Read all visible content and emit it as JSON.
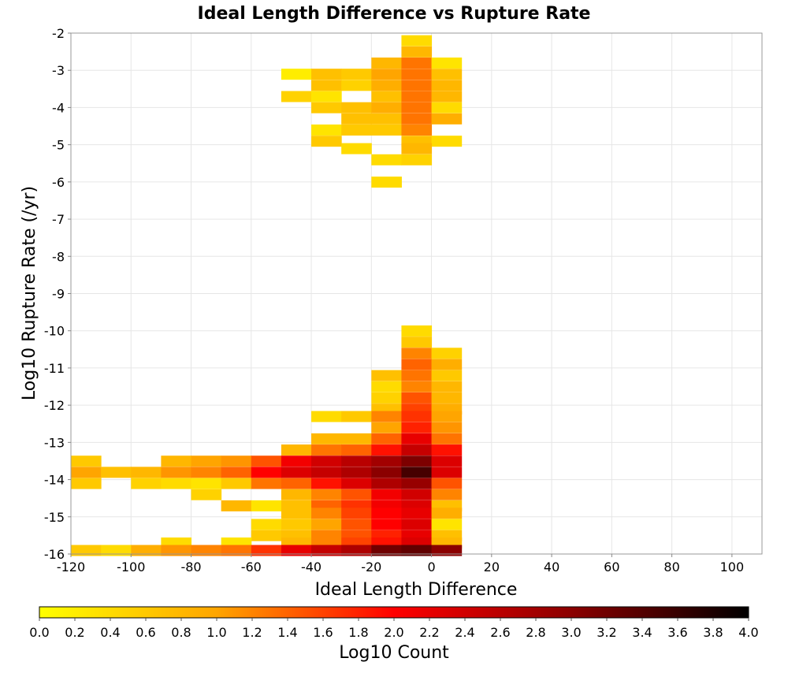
{
  "chart_data": {
    "type": "heatmap",
    "title": "Ideal Length Difference vs Rupture Rate",
    "xlabel": "Ideal Length Difference",
    "ylabel": "Log10 Rupture Rate (/yr)",
    "colorbar_label": "Log10 Count",
    "xlim": [
      -120,
      110
    ],
    "ylim": [
      -16,
      -2
    ],
    "x_ticks": [
      "-120",
      "-100",
      "-80",
      "-60",
      "-40",
      "-20",
      "0",
      "20",
      "40",
      "60",
      "80",
      "100"
    ],
    "y_ticks": [
      "-2",
      "-3",
      "-4",
      "-5",
      "-6",
      "-7",
      "-8",
      "-9",
      "-10",
      "-11",
      "-12",
      "-13",
      "-14",
      "-15",
      "-16"
    ],
    "colorbar_ticks": [
      "0.0",
      "0.2",
      "0.4",
      "0.6",
      "0.8",
      "1.0",
      "1.2",
      "1.4",
      "1.6",
      "1.8",
      "2.0",
      "2.2",
      "2.4",
      "2.6",
      "2.8",
      "3.0",
      "3.2",
      "3.4",
      "3.6",
      "3.8",
      "4.0"
    ],
    "color_range": [
      0,
      4
    ],
    "bin_width_x": 10,
    "bin_height_y": 0.2857,
    "colormap": [
      "#ffff00",
      "#ffa500",
      "#ff0000",
      "#8b0000",
      "#000000"
    ],
    "grid": true,
    "cells": [
      [
        -10,
        -2.2,
        0.4
      ],
      [
        -10,
        -2.5,
        0.8
      ],
      [
        -20,
        -2.8,
        0.8
      ],
      [
        -10,
        -2.8,
        1.3
      ],
      [
        0,
        -2.8,
        0.3
      ],
      [
        -50,
        -3.1,
        0.2
      ],
      [
        -40,
        -3.1,
        0.7
      ],
      [
        -30,
        -3.1,
        0.6
      ],
      [
        -20,
        -3.1,
        1.0
      ],
      [
        -10,
        -3.1,
        1.3
      ],
      [
        0,
        -3.1,
        0.7
      ],
      [
        -40,
        -3.4,
        0.7
      ],
      [
        -30,
        -3.4,
        0.5
      ],
      [
        -20,
        -3.4,
        0.9
      ],
      [
        -10,
        -3.4,
        1.3
      ],
      [
        0,
        -3.4,
        0.8
      ],
      [
        -50,
        -3.7,
        0.5
      ],
      [
        -40,
        -3.7,
        0.3
      ],
      [
        -20,
        -3.7,
        0.7
      ],
      [
        -10,
        -3.7,
        1.3
      ],
      [
        0,
        -3.7,
        0.8
      ],
      [
        -40,
        -4.0,
        0.6
      ],
      [
        -30,
        -4.0,
        0.7
      ],
      [
        -20,
        -4.0,
        0.9
      ],
      [
        -10,
        -4.0,
        1.3
      ],
      [
        0,
        -4.0,
        0.4
      ],
      [
        -30,
        -4.3,
        0.7
      ],
      [
        -20,
        -4.3,
        0.7
      ],
      [
        -10,
        -4.3,
        1.3
      ],
      [
        0,
        -4.3,
        0.9
      ],
      [
        -40,
        -4.6,
        0.3
      ],
      [
        -30,
        -4.6,
        0.6
      ],
      [
        -20,
        -4.6,
        0.6
      ],
      [
        -10,
        -4.6,
        1.2
      ],
      [
        -40,
        -4.9,
        0.6
      ],
      [
        -10,
        -4.9,
        0.7
      ],
      [
        0,
        -4.9,
        0.4
      ],
      [
        -30,
        -5.1,
        0.4
      ],
      [
        -10,
        -5.1,
        0.8
      ],
      [
        -20,
        -5.4,
        0.4
      ],
      [
        -10,
        -5.4,
        0.5
      ],
      [
        -20,
        -6.0,
        0.4
      ],
      [
        -10,
        -10.0,
        0.4
      ],
      [
        -10,
        -10.3,
        0.6
      ],
      [
        -10,
        -10.6,
        1.2
      ],
      [
        0,
        -10.6,
        0.5
      ],
      [
        -10,
        -10.9,
        1.4
      ],
      [
        0,
        -10.9,
        0.9
      ],
      [
        -20,
        -11.2,
        0.7
      ],
      [
        -10,
        -11.2,
        1.3
      ],
      [
        0,
        -11.2,
        0.6
      ],
      [
        -20,
        -11.5,
        0.4
      ],
      [
        -10,
        -11.5,
        1.2
      ],
      [
        0,
        -11.5,
        0.8
      ],
      [
        -20,
        -11.8,
        0.5
      ],
      [
        -10,
        -11.8,
        1.5
      ],
      [
        0,
        -11.8,
        0.8
      ],
      [
        -20,
        -12.1,
        0.7
      ],
      [
        -10,
        -12.1,
        1.6
      ],
      [
        0,
        -12.1,
        0.9
      ],
      [
        -40,
        -12.3,
        0.4
      ],
      [
        -30,
        -12.3,
        0.6
      ],
      [
        -20,
        -12.3,
        1.2
      ],
      [
        -10,
        -12.3,
        1.7
      ],
      [
        0,
        -12.3,
        1.0
      ],
      [
        -20,
        -12.6,
        1.0
      ],
      [
        -10,
        -12.6,
        1.8
      ],
      [
        0,
        -12.6,
        1.1
      ],
      [
        -40,
        -12.9,
        0.8
      ],
      [
        -30,
        -12.9,
        0.8
      ],
      [
        -20,
        -12.9,
        1.4
      ],
      [
        -10,
        -12.9,
        2.2
      ],
      [
        0,
        -12.9,
        1.3
      ],
      [
        -50,
        -13.2,
        0.8
      ],
      [
        -40,
        -13.2,
        1.3
      ],
      [
        -30,
        -13.2,
        1.4
      ],
      [
        -20,
        -13.2,
        1.9
      ],
      [
        -10,
        -13.2,
        2.5
      ],
      [
        0,
        -13.2,
        1.9
      ],
      [
        -120,
        -13.5,
        0.6
      ],
      [
        -90,
        -13.5,
        0.8
      ],
      [
        -80,
        -13.5,
        1.0
      ],
      [
        -70,
        -13.5,
        1.1
      ],
      [
        -60,
        -13.5,
        1.5
      ],
      [
        -50,
        -13.5,
        2.1
      ],
      [
        -40,
        -13.5,
        2.4
      ],
      [
        -30,
        -13.5,
        2.6
      ],
      [
        -20,
        -13.5,
        2.8
      ],
      [
        -10,
        -13.5,
        3.1
      ],
      [
        0,
        -13.5,
        2.3
      ],
      [
        -120,
        -13.8,
        1.0
      ],
      [
        -110,
        -13.8,
        0.7
      ],
      [
        -100,
        -13.8,
        0.8
      ],
      [
        -90,
        -13.8,
        1.1
      ],
      [
        -80,
        -13.8,
        1.2
      ],
      [
        -70,
        -13.8,
        1.4
      ],
      [
        -60,
        -13.8,
        2.0
      ],
      [
        -50,
        -13.8,
        2.3
      ],
      [
        -40,
        -13.8,
        2.5
      ],
      [
        -30,
        -13.8,
        2.7
      ],
      [
        -20,
        -13.8,
        3.0
      ],
      [
        -10,
        -13.8,
        3.5
      ],
      [
        0,
        -13.8,
        2.3
      ],
      [
        -120,
        -14.1,
        0.6
      ],
      [
        -100,
        -14.1,
        0.5
      ],
      [
        -90,
        -14.1,
        0.4
      ],
      [
        -80,
        -14.1,
        0.3
      ],
      [
        -70,
        -14.1,
        0.6
      ],
      [
        -60,
        -14.1,
        1.3
      ],
      [
        -50,
        -14.1,
        1.4
      ],
      [
        -40,
        -14.1,
        1.9
      ],
      [
        -30,
        -14.1,
        2.3
      ],
      [
        -20,
        -14.1,
        2.7
      ],
      [
        -10,
        -14.1,
        2.9
      ],
      [
        0,
        -14.1,
        1.5
      ],
      [
        -80,
        -14.4,
        0.5
      ],
      [
        -50,
        -14.4,
        0.8
      ],
      [
        -40,
        -14.4,
        1.2
      ],
      [
        -30,
        -14.4,
        1.5
      ],
      [
        -20,
        -14.4,
        2.1
      ],
      [
        -10,
        -14.4,
        2.4
      ],
      [
        0,
        -14.4,
        1.2
      ],
      [
        -70,
        -14.7,
        0.8
      ],
      [
        -60,
        -14.7,
        0.3
      ],
      [
        -50,
        -14.7,
        0.7
      ],
      [
        -40,
        -14.7,
        1.4
      ],
      [
        -30,
        -14.7,
        1.7
      ],
      [
        -20,
        -14.7,
        2.1
      ],
      [
        -10,
        -14.7,
        2.3
      ],
      [
        0,
        -14.7,
        0.7
      ],
      [
        -50,
        -14.9,
        0.7
      ],
      [
        -40,
        -14.9,
        1.2
      ],
      [
        -30,
        -14.9,
        1.6
      ],
      [
        -20,
        -14.9,
        2.0
      ],
      [
        -10,
        -14.9,
        2.2
      ],
      [
        0,
        -14.9,
        0.9
      ],
      [
        -60,
        -15.2,
        0.4
      ],
      [
        -50,
        -15.2,
        0.6
      ],
      [
        -40,
        -15.2,
        1.0
      ],
      [
        -30,
        -15.2,
        1.5
      ],
      [
        -20,
        -15.2,
        2.0
      ],
      [
        -10,
        -15.2,
        2.3
      ],
      [
        0,
        -15.2,
        0.3
      ],
      [
        -60,
        -15.5,
        0.6
      ],
      [
        -50,
        -15.5,
        0.7
      ],
      [
        -40,
        -15.5,
        1.2
      ],
      [
        -30,
        -15.5,
        1.5
      ],
      [
        -20,
        -15.5,
        1.8
      ],
      [
        -10,
        -15.5,
        2.2
      ],
      [
        0,
        -15.5,
        0.7
      ],
      [
        -90,
        -15.7,
        0.4
      ],
      [
        -70,
        -15.7,
        0.3
      ],
      [
        -50,
        -15.7,
        0.8
      ],
      [
        -40,
        -15.7,
        1.2
      ],
      [
        -30,
        -15.7,
        1.6
      ],
      [
        -20,
        -15.7,
        1.9
      ],
      [
        -10,
        -15.7,
        2.3
      ],
      [
        0,
        -15.7,
        0.8
      ],
      [
        -120,
        -15.9,
        0.6
      ],
      [
        -110,
        -15.9,
        0.4
      ],
      [
        -100,
        -15.9,
        0.9
      ],
      [
        -90,
        -15.9,
        1.1
      ],
      [
        -80,
        -15.9,
        1.2
      ],
      [
        -70,
        -15.9,
        1.3
      ],
      [
        -60,
        -15.9,
        1.7
      ],
      [
        -50,
        -15.9,
        2.2
      ],
      [
        -40,
        -15.9,
        2.5
      ],
      [
        -30,
        -15.9,
        2.7
      ],
      [
        -20,
        -15.9,
        3.2
      ],
      [
        -10,
        -15.9,
        3.3
      ],
      [
        0,
        -15.9,
        3.0
      ]
    ]
  }
}
